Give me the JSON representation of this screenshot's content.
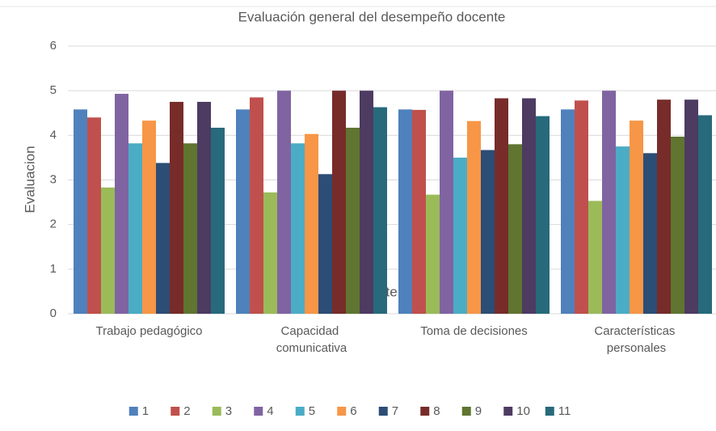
{
  "chart_data": {
    "type": "bar",
    "title": "Evaluación general del desempeño docente",
    "x_label": "Docente",
    "y_label": "Evaluacion",
    "categories": [
      "Trabajo pedagógico",
      "Capacidad comunicativa",
      "Toma de decisiones",
      "Características personales"
    ],
    "series": [
      {
        "name": "1",
        "color": "#4f81bd",
        "values": [
          4.58,
          4.58,
          4.58,
          4.58
        ]
      },
      {
        "name": "2",
        "color": "#c0504d",
        "values": [
          4.4,
          4.85,
          4.57,
          4.78
        ]
      },
      {
        "name": "3",
        "color": "#9bbb59",
        "values": [
          2.83,
          2.72,
          2.67,
          2.53
        ]
      },
      {
        "name": "4",
        "color": "#8064a2",
        "values": [
          4.93,
          5,
          5,
          5
        ]
      },
      {
        "name": "5",
        "color": "#4bacc6",
        "values": [
          3.82,
          3.82,
          3.5,
          3.75
        ]
      },
      {
        "name": "6",
        "color": "#f79646",
        "values": [
          4.33,
          4.03,
          4.32,
          4.33
        ]
      },
      {
        "name": "7",
        "color": "#2c4d75",
        "values": [
          3.38,
          3.13,
          3.67,
          3.6
        ]
      },
      {
        "name": "8",
        "color": "#772c2a",
        "values": [
          4.75,
          5,
          4.83,
          4.8
        ]
      },
      {
        "name": "9",
        "color": "#5f7530",
        "values": [
          3.82,
          4.17,
          3.8,
          3.97
        ]
      },
      {
        "name": "10",
        "color": "#4d3b62",
        "values": [
          4.75,
          5,
          4.83,
          4.8
        ]
      },
      {
        "name": "11",
        "color": "#276a7c",
        "values": [
          4.17,
          4.63,
          4.43,
          4.45
        ]
      }
    ],
    "ylim": [
      0,
      6
    ],
    "yticks": [
      0,
      1,
      2,
      3,
      4,
      5,
      6
    ],
    "grid": true,
    "legend": "bottom"
  }
}
